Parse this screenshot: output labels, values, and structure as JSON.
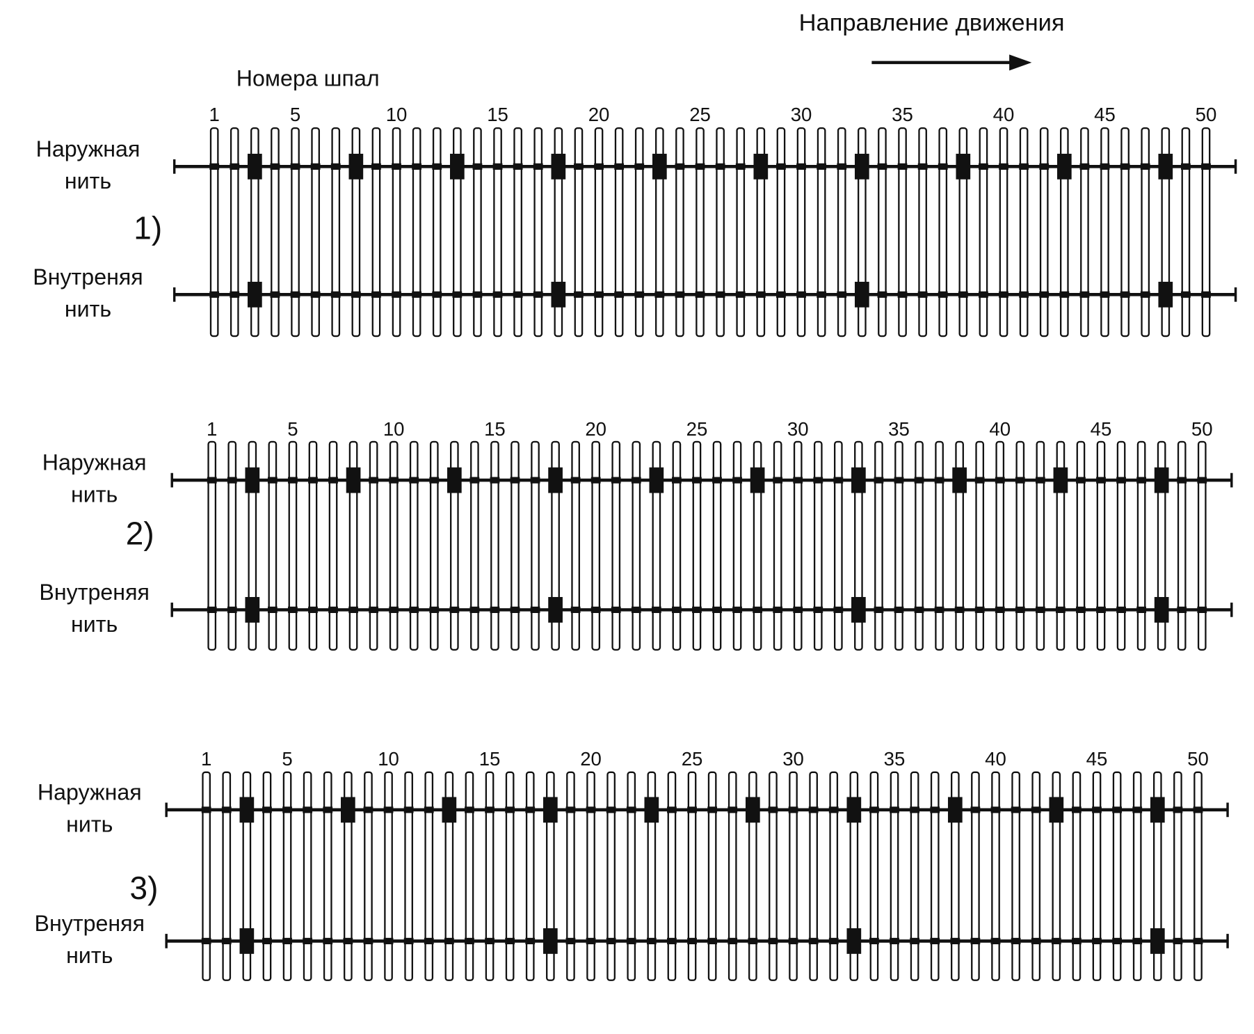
{
  "header": {
    "direction": "Направление движения",
    "sleepers_title": "Номера шпал"
  },
  "panels": [
    {
      "label": "1)",
      "sleeper_numbers": [
        1,
        5,
        10,
        15,
        20,
        25,
        30,
        35,
        40,
        45,
        50
      ],
      "outer": {
        "line1": "Наружная",
        "line2": "нить"
      },
      "inner": {
        "line1": "Внутреняя",
        "line2": "нить"
      }
    },
    {
      "label": "2)",
      "sleeper_numbers": [
        1,
        5,
        10,
        15,
        20,
        25,
        30,
        35,
        40,
        45,
        50
      ],
      "outer": {
        "line1": "Наружная",
        "line2": "нить"
      },
      "inner": {
        "line1": "Внутреняя",
        "line2": "нить"
      }
    },
    {
      "label": "3)",
      "sleeper_numbers": [
        1,
        5,
        10,
        15,
        20,
        25,
        30,
        35,
        40,
        45,
        50
      ],
      "outer": {
        "line1": "Наружная",
        "line2": "нить"
      },
      "inner": {
        "line1": "Внутреняя",
        "line2": "нить"
      }
    }
  ]
}
